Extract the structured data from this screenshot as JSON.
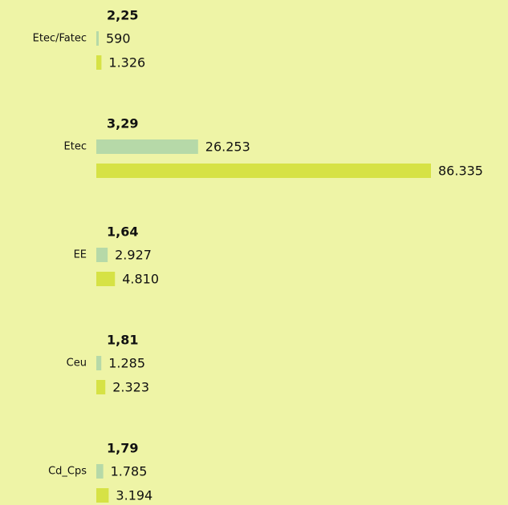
{
  "chart_data": {
    "type": "bar",
    "orientation": "horizontal",
    "categories": [
      "Etec/Fatec",
      "Etec",
      "EE",
      "Ceu",
      "Cd_Cps"
    ],
    "annotations": [
      "2,25",
      "3,29",
      "1,64",
      "1,81",
      "1,79"
    ],
    "series": [
      {
        "color": "#b6d9a8",
        "values": [
          590,
          26253,
          2927,
          1285,
          1785
        ],
        "value_labels": [
          "590",
          "26.253",
          "2.927",
          "1.285",
          "1.785"
        ]
      },
      {
        "color": "#d6e245",
        "values": [
          1326,
          86335,
          4810,
          2323,
          3194
        ],
        "value_labels": [
          "1.326",
          "86.335",
          "4.810",
          "2.323",
          "3.194"
        ]
      }
    ],
    "xlim": [
      0,
      86335
    ]
  }
}
